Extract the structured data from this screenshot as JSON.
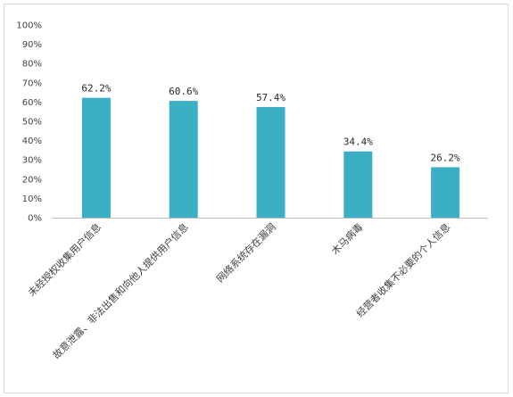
{
  "chart_data": {
    "type": "bar",
    "title": "",
    "xlabel": "",
    "ylabel": "",
    "categories": [
      "未经授权收集用户信息",
      "故意泄露、非法出售和向他人提供用户信息",
      "网络系统存在漏洞",
      "木马病毒",
      "经营者收集不必要的个人信息"
    ],
    "values": [
      62.2,
      60.6,
      57.4,
      34.4,
      26.2
    ],
    "value_labels": [
      "62.2%",
      "60.6%",
      "57.4%",
      "34.4%",
      "26.2%"
    ],
    "ylim": [
      0,
      100
    ],
    "yticks": [
      0,
      10,
      20,
      30,
      40,
      50,
      60,
      70,
      80,
      90,
      100
    ],
    "ytick_labels": [
      "0%",
      "10%",
      "20%",
      "30%",
      "40%",
      "50%",
      "60%",
      "70%",
      "80%",
      "90%",
      "100%"
    ],
    "grid": false,
    "legend": "none",
    "bar_color": "#3bafc4",
    "axis_color": "#bfbfbf"
  }
}
